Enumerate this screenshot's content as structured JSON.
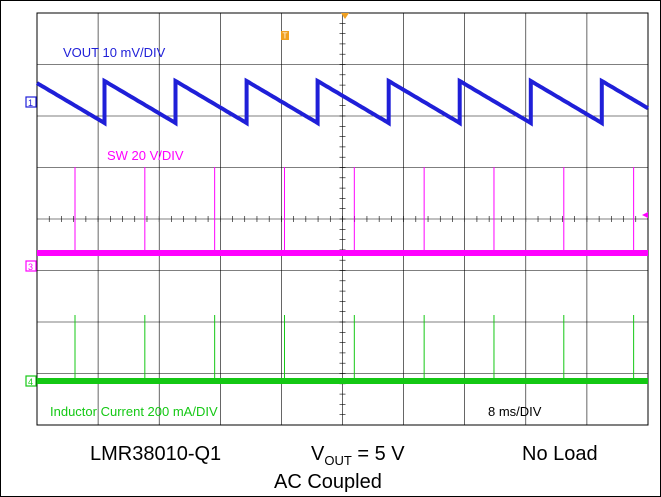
{
  "chart_data": {
    "type": "line",
    "title": "",
    "grid": true,
    "timebase": "8  ms/DIV",
    "series": [
      {
        "name": "VOUT",
        "label": "VOUT  10 mV/DIV",
        "channel_marker": "1",
        "color": "#1f1fd8",
        "shape": "sawtooth",
        "cycles": 8.6,
        "amplitude_mv": 10
      },
      {
        "name": "SW",
        "label": "SW  20 V/DIV",
        "channel_marker": "3",
        "color": "#ff00ff",
        "shape": "flat-with-spikes",
        "spikes": 9,
        "amplitude_v": 20
      },
      {
        "name": "Inductor Current",
        "label": "Inductor Current  200 mA/DIV",
        "channel_marker": "4",
        "color": "#14c814",
        "shape": "flat-with-spikes",
        "spikes": 9,
        "amplitude_ma": 200
      }
    ],
    "trigger_marker": "T"
  },
  "captions": {
    "device": "LMR38010-Q1",
    "vout_main": "V",
    "vout_sub": "OUT",
    "vout_tail": " = 5 V",
    "load": "No Load",
    "coupling": "AC Coupled"
  }
}
